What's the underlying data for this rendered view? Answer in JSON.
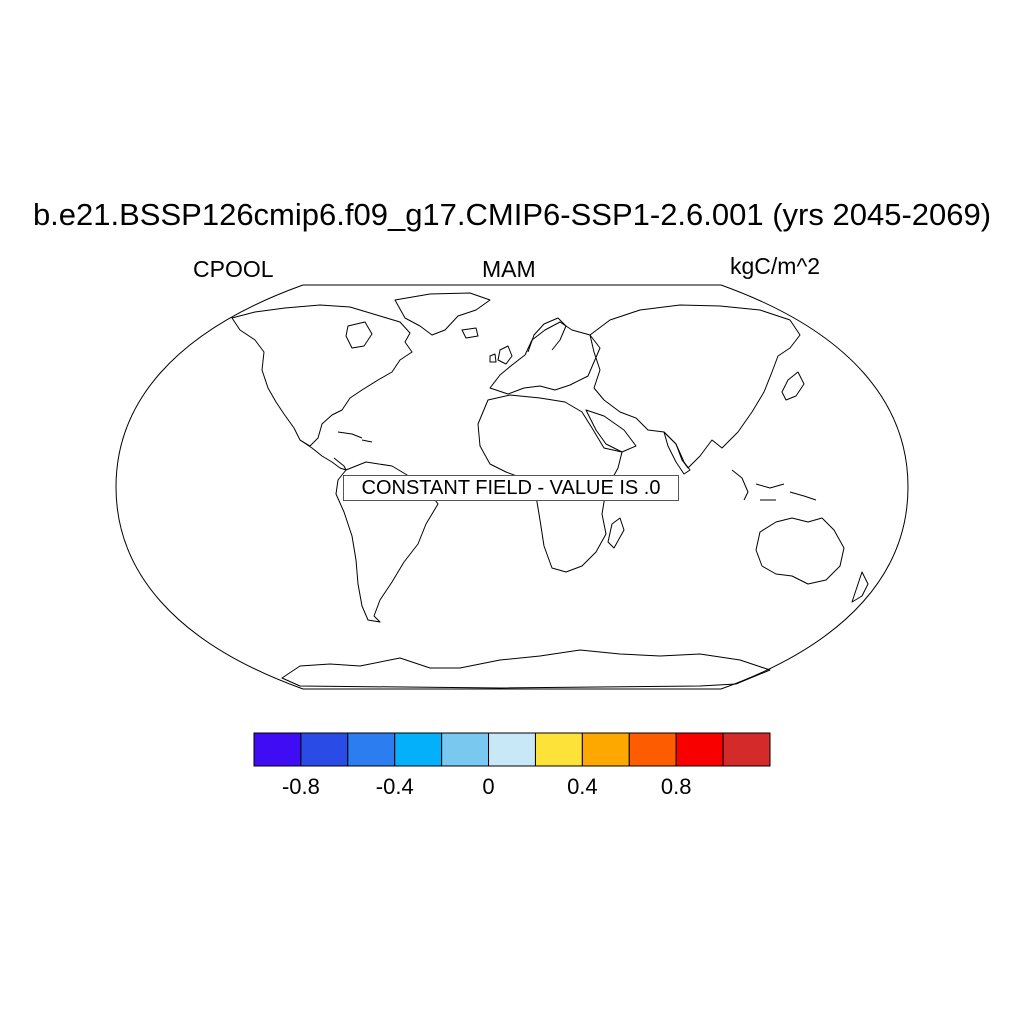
{
  "header": {
    "title": "b.e21.BSSP126cmip6.f09_g17.CMIP6-SSP1-2.6.001 (yrs 2045-2069)",
    "left_label": "CPOOL",
    "center_label": "MAM",
    "right_label": "kgC/m^2"
  },
  "map": {
    "projection": "robinson",
    "message": "CONSTANT FIELD - VALUE IS .0"
  },
  "colorbar": {
    "colors": [
      "#3f0cf3",
      "#2b4be6",
      "#2c7ef0",
      "#05b0fb",
      "#78c8ef",
      "#c8e8f8",
      "#fde23a",
      "#fda701",
      "#fd5d00",
      "#f90000",
      "#d42a2a"
    ],
    "tick_labels": [
      "-0.8",
      "-0.4",
      "0",
      "0.4",
      "0.8"
    ],
    "tick_boundary_index": [
      1,
      3,
      5,
      7,
      9
    ]
  }
}
